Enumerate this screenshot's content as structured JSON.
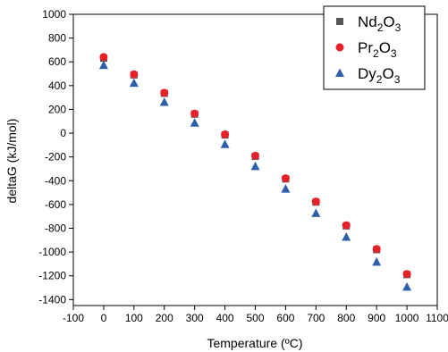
{
  "chart_data": {
    "type": "scatter",
    "title": "",
    "xlabel": "Temperature (ºC)",
    "ylabel": "deltaG (kJ/mol)",
    "xlim": [
      -100,
      1100
    ],
    "ylim": [
      -1450,
      1000
    ],
    "x_ticks": [
      -100,
      0,
      100,
      200,
      300,
      400,
      500,
      600,
      700,
      800,
      900,
      1000,
      1100
    ],
    "y_ticks": [
      1000,
      800,
      600,
      400,
      200,
      0,
      -200,
      -400,
      -600,
      -800,
      -1000,
      -1200,
      -1400
    ],
    "grid": false,
    "legend_position": "top-right",
    "x": [
      0,
      100,
      200,
      300,
      400,
      500,
      600,
      700,
      800,
      900,
      1000
    ],
    "series": [
      {
        "name": "Nd2O3",
        "legend_base": "Nd",
        "legend_sub1": "2",
        "legend_mid": "O",
        "legend_sub2": "3",
        "marker": "square",
        "color": "#555555",
        "values": [
          630,
          490,
          335,
          160,
          -15,
          -195,
          -385,
          -580,
          -780,
          -980,
          -1190
        ]
      },
      {
        "name": "Pr2O3",
        "legend_base": "Pr",
        "legend_sub1": "2",
        "legend_mid": "O",
        "legend_sub2": "3",
        "marker": "circle",
        "color": "#e8202a",
        "values": [
          640,
          495,
          340,
          165,
          -10,
          -190,
          -380,
          -575,
          -775,
          -975,
          -1185
        ]
      },
      {
        "name": "Dy2O3",
        "legend_base": "Dy",
        "legend_sub1": "2",
        "legend_mid": "O",
        "legend_sub2": "3",
        "marker": "triangle",
        "color": "#2f5fa8",
        "values": [
          570,
          420,
          260,
          85,
          -95,
          -280,
          -470,
          -675,
          -875,
          -1085,
          -1295
        ]
      }
    ]
  }
}
